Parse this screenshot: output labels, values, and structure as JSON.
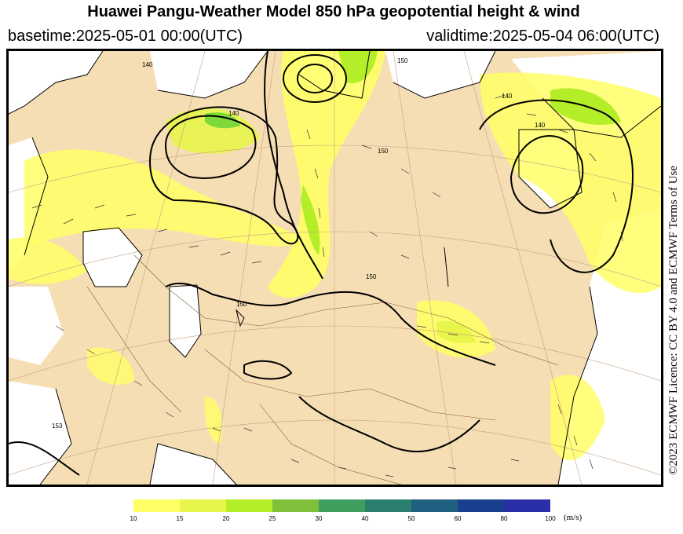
{
  "header": {
    "title": "Huawei Pangu-Weather Model 850 hPa geopotential height & wind",
    "basetime": "basetime:2025-05-01 00:00(UTC)",
    "validtime": "validtime:2025-05-04 06:00(UTC)"
  },
  "licence": "©2023 ECMWF Licence: CC BY 4.0 and ECMWF Terms of Use",
  "contour_labels": [
    "140",
    "140",
    "140",
    "150",
    "150",
    "150",
    "150",
    "153",
    "140"
  ],
  "colorbar": {
    "unit": "(m/s)",
    "ticks": [
      "10",
      "15",
      "20",
      "25",
      "30",
      "40",
      "50",
      "60",
      "80",
      "100"
    ],
    "colors": [
      "#ffff66",
      "#e8f54a",
      "#b4ee28",
      "#7fbf3a",
      "#3f9f5f",
      "#2a7f6f",
      "#1f5f7f",
      "#1a3f8f",
      "#2a2fa8"
    ]
  },
  "colors": {
    "land": "#f5deb3",
    "sea": "#ffffff",
    "wind_light": "#ffff66",
    "wind_mid": "#c8f03c",
    "wind_strong": "#7fd83a"
  }
}
